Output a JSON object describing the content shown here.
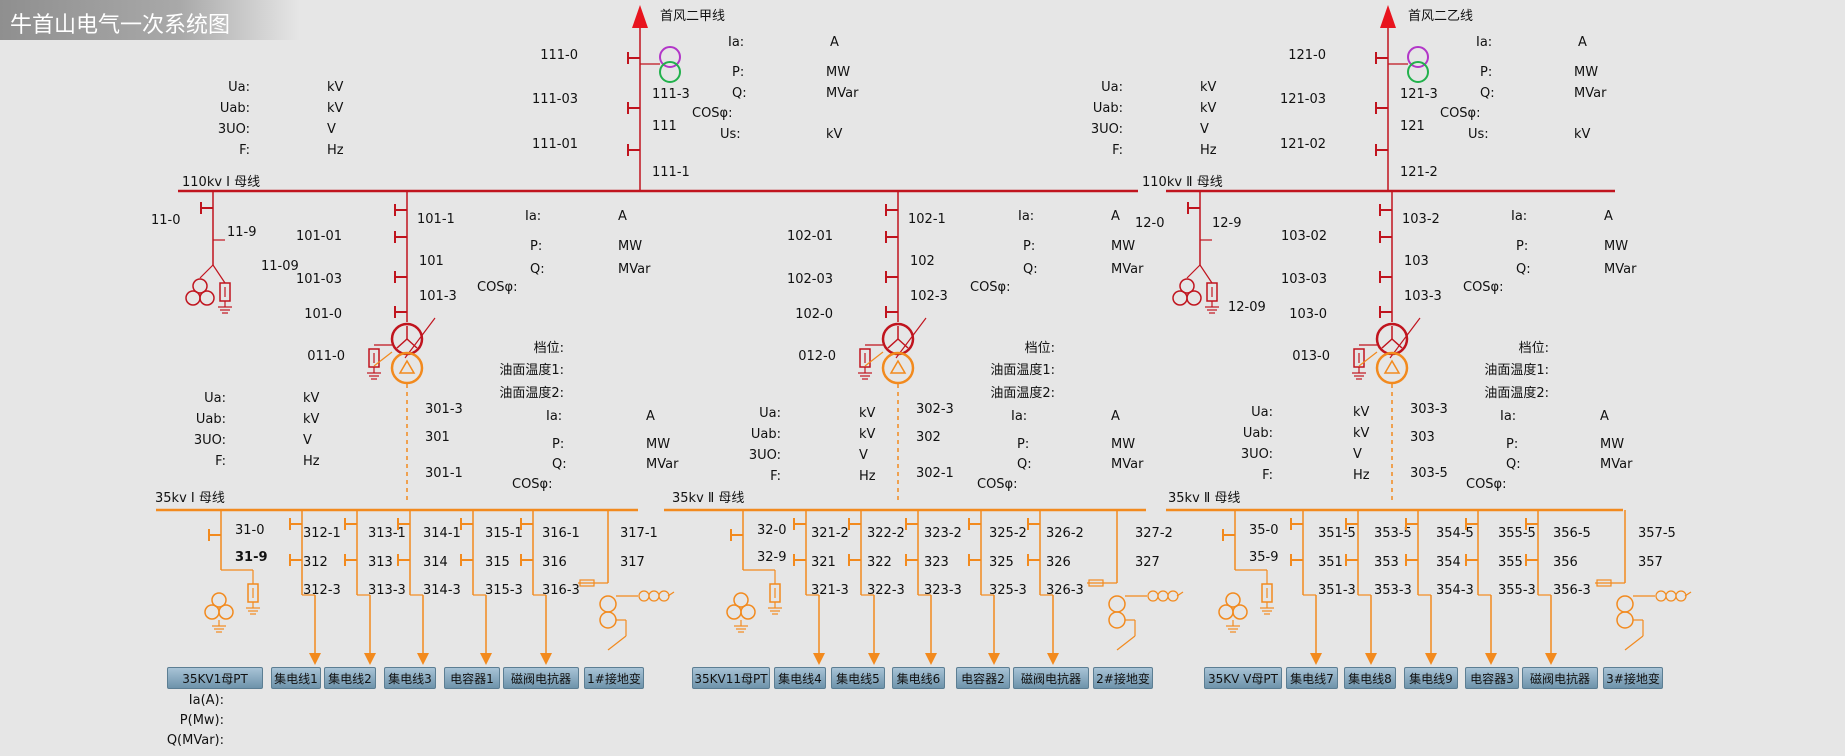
{
  "title": "牛首山电气一次系统图",
  "colors": {
    "kv110": "#c0141e",
    "kv35": "#f28a1e",
    "background": "#e6e6e6",
    "pt_green": "#22b14c",
    "pt_purple": "#b236c8",
    "button": "#7fa3bb"
  },
  "busbars": {
    "b110_1": "110kv Ⅰ 母线",
    "b110_2": "110kv Ⅱ 母线",
    "b35_1": "35kv Ⅰ 母线",
    "b35_2": "35kv Ⅱ 母线",
    "b35_3": "35kv Ⅱ 母线"
  },
  "incoming": [
    {
      "name": "首风二甲线",
      "switches": [
        "111-0",
        "111-03",
        "111-3",
        "111",
        "111-01",
        "111-1"
      ],
      "meas": [
        "Ia:",
        "A",
        "P:",
        "MW",
        "Q:",
        "MVar",
        "COSφ:",
        "Us:",
        "kV"
      ]
    },
    {
      "name": "首风二乙线",
      "switches": [
        "121-0",
        "121-03",
        "121-3",
        "121",
        "121-02",
        "121-2"
      ],
      "meas": [
        "Ia:",
        "A",
        "P:",
        "MW",
        "Q:",
        "MVar",
        "COSφ:",
        "Us:",
        "kV"
      ]
    }
  ],
  "bus_meas": [
    "Ua:",
    "kV",
    "Uab:",
    "kV",
    "3UO:",
    "V",
    "F:",
    "Hz"
  ],
  "transformers": [
    {
      "hv": [
        "101-1",
        "101-01",
        "101",
        "101-03",
        "101-3",
        "101-0"
      ],
      "neutral": "011-0",
      "lv": [
        "301-3",
        "301",
        "301-1"
      ]
    },
    {
      "hv": [
        "102-1",
        "102-01",
        "102",
        "102-03",
        "102-3",
        "102-0"
      ],
      "neutral": "012-0",
      "lv": [
        "302-3",
        "302",
        "302-1"
      ]
    },
    {
      "hv": [
        "103-2",
        "103-02",
        "103",
        "103-03",
        "103-3",
        "103-0"
      ],
      "neutral": "013-0",
      "lv": [
        "303-3",
        "303",
        "303-5"
      ]
    }
  ],
  "xfmr_meas": [
    "Ia:",
    "A",
    "P:",
    "MW",
    "Q:",
    "MVar",
    "COSφ:"
  ],
  "xfmr_temp": [
    "档位:",
    "油面温度1:",
    "油面温度2:"
  ],
  "pt_sections": [
    {
      "switches": [
        "11-0",
        "11-9",
        "11-09"
      ]
    },
    {
      "switches": [
        "12-0",
        "12-9",
        "12-09"
      ]
    }
  ],
  "section_pt_35": [
    {
      "switches": [
        "31-0",
        "31-9"
      ]
    },
    {
      "switches": [
        "32-0",
        "32-9"
      ]
    },
    {
      "switches": [
        "35-0",
        "35-9"
      ]
    }
  ],
  "feeders": [
    {
      "ids": [
        "312-1",
        "312",
        "312-3"
      ]
    },
    {
      "ids": [
        "313-1",
        "313",
        "313-3"
      ]
    },
    {
      "ids": [
        "314-1",
        "314",
        "314-3"
      ]
    },
    {
      "ids": [
        "315-1",
        "315",
        "315-3"
      ]
    },
    {
      "ids": [
        "316-1",
        "316",
        "316-3"
      ]
    },
    {
      "ids": [
        "317-1",
        "317",
        ""
      ]
    },
    {
      "ids": [
        "321-2",
        "321",
        "321-3"
      ]
    },
    {
      "ids": [
        "322-2",
        "322",
        "322-3"
      ]
    },
    {
      "ids": [
        "323-2",
        "323",
        "323-3"
      ]
    },
    {
      "ids": [
        "325-2",
        "325",
        "325-3"
      ]
    },
    {
      "ids": [
        "326-2",
        "326",
        "326-3"
      ]
    },
    {
      "ids": [
        "327-2",
        "327",
        ""
      ]
    },
    {
      "ids": [
        "351-5",
        "351",
        "351-3"
      ]
    },
    {
      "ids": [
        "353-5",
        "353",
        "353-3"
      ]
    },
    {
      "ids": [
        "354-5",
        "354",
        "354-3"
      ]
    },
    {
      "ids": [
        "355-5",
        "355",
        "355-3"
      ]
    },
    {
      "ids": [
        "356-5",
        "356",
        "356-3"
      ]
    },
    {
      "ids": [
        "357-5",
        "357",
        ""
      ]
    }
  ],
  "buttons": [
    "35KV1母PT",
    "集电线1",
    "集电线2",
    "集电线3",
    "电容器1",
    "磁阀电抗器",
    "1#接地变",
    "35KV11母PT",
    "集电线4",
    "集电线5",
    "集电线6",
    "电容器2",
    "磁阀电抗器",
    "2#接地变",
    "35KV Ⅴ母PT",
    "集电线7",
    "集电线8",
    "集电线9",
    "电容器3",
    "磁阀电抗器",
    "3#接地变"
  ],
  "bottom_meas": [
    "Ia(A):",
    "P(Mw):",
    "Q(MVar):"
  ]
}
